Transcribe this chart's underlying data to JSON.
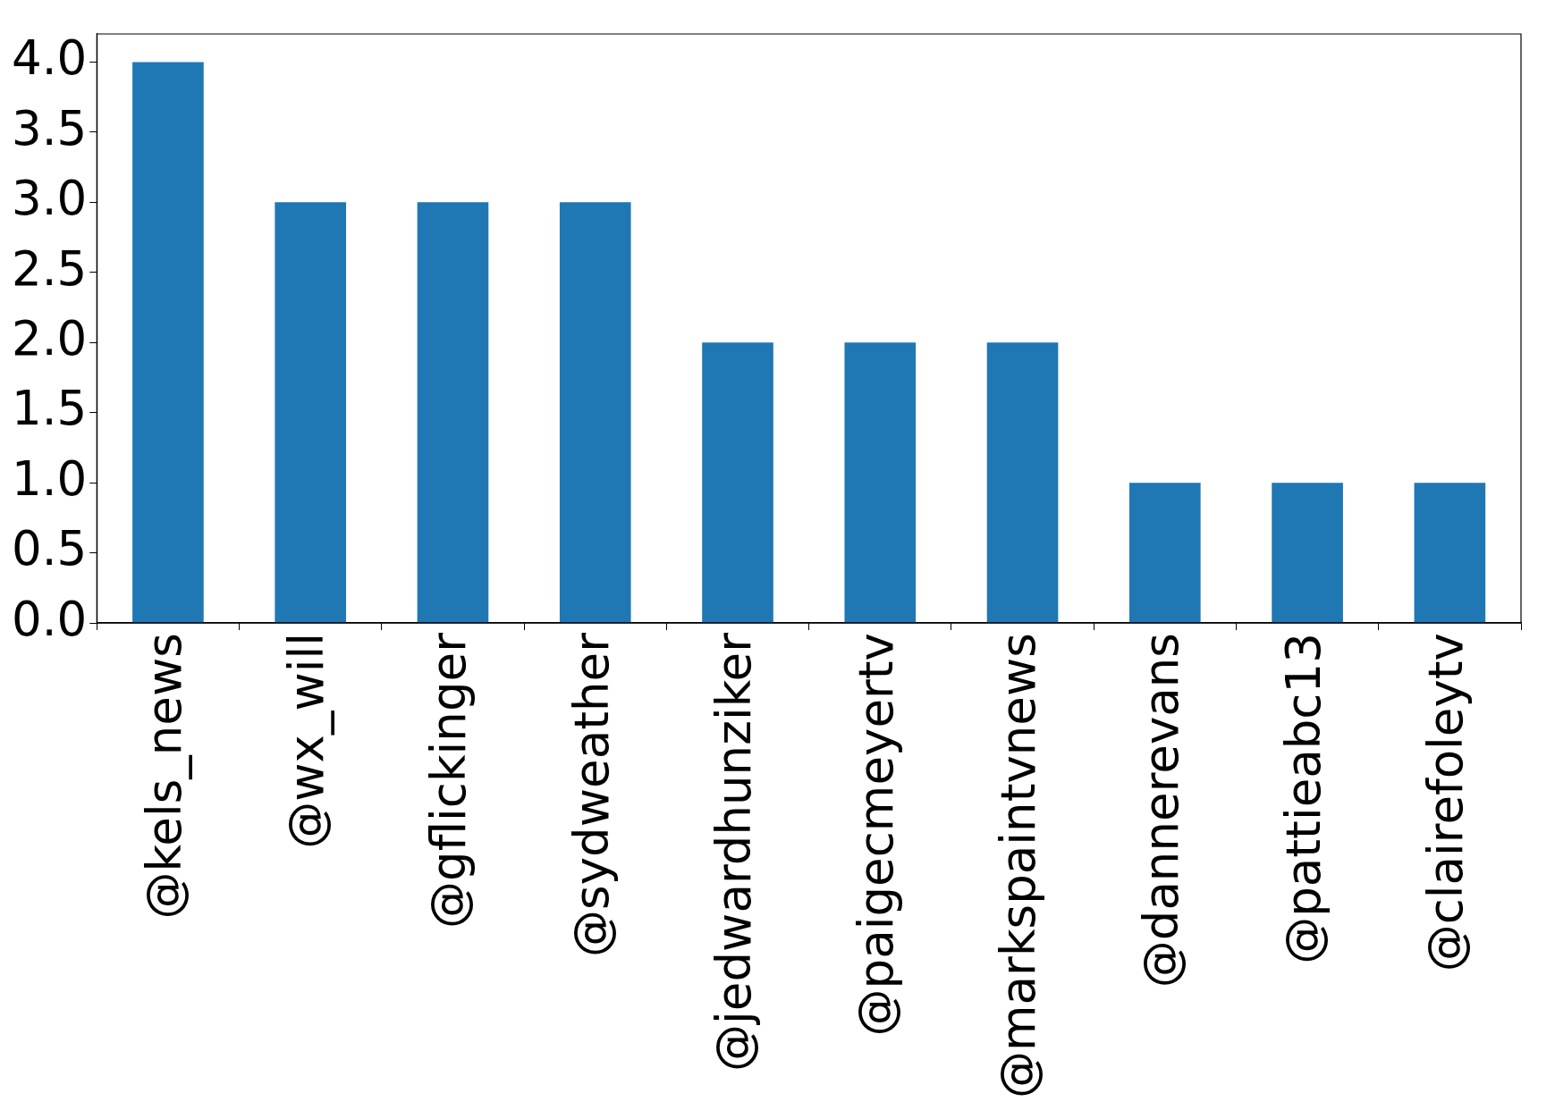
{
  "chart_data": {
    "type": "bar",
    "categories": [
      "@kels_news",
      "@wx_will",
      "@gflickinger",
      "@sydweather",
      "@jedwardhunziker",
      "@paigecmeyertv",
      "@markspaintvnews",
      "@dannerevans",
      "@pattieabc13",
      "@clairefoleytv"
    ],
    "values": [
      4,
      3,
      3,
      3,
      2,
      2,
      2,
      1,
      1,
      1
    ],
    "color": "#1f77b4",
    "ylim": [
      0,
      4.2
    ],
    "yticks": [
      {
        "value": 0,
        "label": "0.0"
      },
      {
        "value": 0.5,
        "label": "0.5"
      },
      {
        "value": 1,
        "label": "1.0"
      },
      {
        "value": 1.5,
        "label": "1.5"
      },
      {
        "value": 2,
        "label": "2.0"
      },
      {
        "value": 2.5,
        "label": "2.5"
      },
      {
        "value": 3,
        "label": "3.0"
      },
      {
        "value": 3.5,
        "label": "3.5"
      },
      {
        "value": 4,
        "label": "4.0"
      }
    ],
    "grid": false,
    "legend": false
  }
}
